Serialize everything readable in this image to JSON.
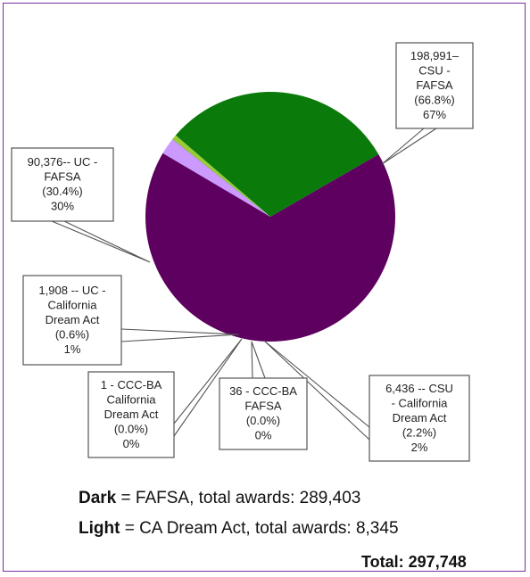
{
  "chart_data": {
    "type": "pie",
    "slices": [
      {
        "label_lines": [
          "198,991–",
          "CSU -",
          "FAFSA",
          "(66.8%)",
          "67%"
        ],
        "value": 198991,
        "color": "#5e0060"
      },
      {
        "label_lines": [
          "6,436 -- CSU",
          "- California",
          "Dream Act",
          "(2.2%)",
          "2%"
        ],
        "value": 6436,
        "color": "#cc99ff"
      },
      {
        "label_lines": [
          "36 - CCC-BA",
          "FAFSA",
          "(0.0%)",
          "0%"
        ],
        "value": 36,
        "color": "#0a4a8a"
      },
      {
        "label_lines": [
          "1 - CCC-BA",
          "California",
          "Dream Act",
          "(0.0%)",
          "0%"
        ],
        "value": 1,
        "color": "#3a8ed8"
      },
      {
        "label_lines": [
          "1,908 -- UC -",
          "California",
          "Dream Act",
          "(0.6%)",
          "1%"
        ],
        "value": 1908,
        "color": "#99cc33"
      },
      {
        "label_lines": [
          "90,376-- UC -",
          "FAFSA",
          "(30.4%)",
          "30%"
        ],
        "value": 90376,
        "color": "#0a7a0a"
      }
    ],
    "summary": {
      "dark_label": "Dark",
      "dark_text": " = FAFSA, total awards: 289,403",
      "light_label": "Light",
      "light_text": " = CA Dream Act, total awards: 8,345",
      "total_text": "Total: 297,748"
    }
  }
}
